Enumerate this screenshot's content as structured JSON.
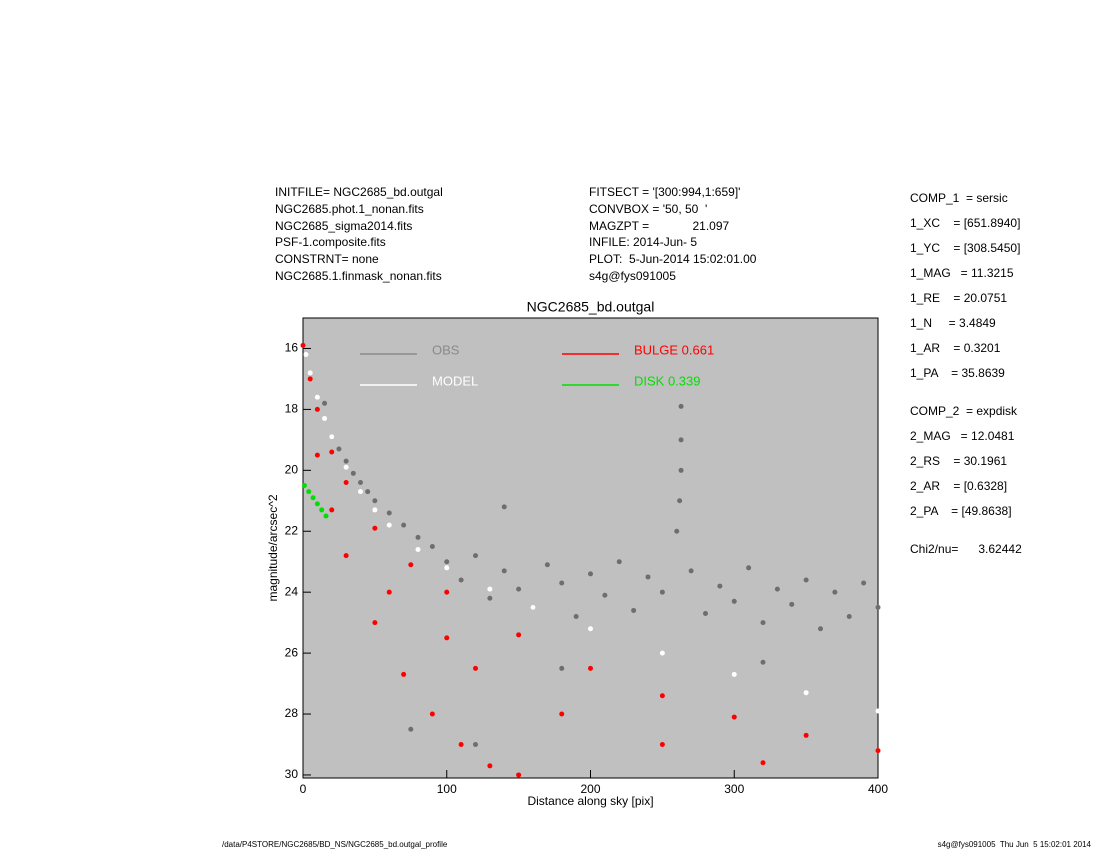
{
  "header": {
    "left": [
      "INITFILE= NGC2685_bd.outgal",
      "NGC2685.phot.1_nonan.fits",
      "NGC2685_sigma2014.fits",
      "PSF-1.composite.fits",
      "CONSTRNT= none",
      "NGC2685.1.finmask_nonan.fits"
    ],
    "middle": [
      "FITSECT = '[300:994,1:659]'",
      "CONVBOX = '50, 50  '",
      "MAGZPT =             21.097",
      "INFILE: 2014-Jun- 5",
      "PLOT:  5-Jun-2014 15:02:01.00",
      "s4g@fys091005"
    ]
  },
  "parameters": [
    [
      "COMP_1  = sersic",
      "1_XC    = [651.8940]",
      "1_YC    = [308.5450]",
      "1_MAG   = 11.3215",
      "1_RE    = 20.0751",
      "1_N     = 3.4849",
      "1_AR    = 0.3201",
      "1_PA    = 35.8639"
    ],
    [
      "COMP_2  = expdisk",
      "2_MAG   = 12.0481",
      "2_RS    = 30.1961",
      "2_AR    = [0.6328]",
      "2_PA    = [49.8638]"
    ],
    [
      "Chi2/nu=      3.62442"
    ]
  ],
  "footer": {
    "left": "/data/P4STORE/NGC2685/BD_NS/NGC2685_bd.outgal_profile",
    "right": "s4g@fys091005  Thu Jun  5 15:02:01 2014"
  },
  "chart_data": {
    "type": "scatter",
    "title": "NGC2685_bd.outgal",
    "x_label": "Distance along sky [pix]",
    "y_label": "magnitude/arcsec^2",
    "xlim": [
      0,
      400
    ],
    "xticks": [
      0,
      100,
      200,
      300,
      400
    ],
    "ylim": [
      30.1,
      15
    ],
    "yticks": [
      16,
      18,
      20,
      22,
      24,
      26,
      28,
      30
    ],
    "plot_background": "#c0c0c0",
    "series": [
      {
        "name": "OBS",
        "color": "#6e6e6e",
        "legend_color": "#8a8a8a",
        "x": [
          15,
          20,
          25,
          30,
          35,
          40,
          45,
          50,
          60,
          70,
          80,
          90,
          100,
          110,
          120,
          130,
          140,
          150,
          160,
          170,
          180,
          190,
          200,
          210,
          220,
          230,
          240,
          250,
          270,
          280,
          290,
          300,
          310,
          320,
          330,
          340,
          350,
          360,
          370,
          380,
          390,
          400,
          263,
          263,
          263,
          262,
          75,
          120,
          180,
          260,
          140,
          320
        ],
        "values": [
          17.8,
          18.9,
          19.3,
          19.7,
          20.1,
          20.4,
          20.7,
          21.0,
          21.4,
          21.8,
          22.2,
          22.5,
          23.0,
          23.6,
          22.8,
          24.2,
          23.3,
          23.9,
          24.5,
          23.1,
          23.7,
          24.8,
          23.4,
          24.1,
          23.0,
          24.6,
          23.5,
          24.0,
          23.3,
          24.7,
          23.8,
          24.3,
          23.2,
          25.0,
          23.9,
          24.4,
          23.6,
          25.2,
          24.0,
          24.8,
          23.7,
          24.5,
          17.9,
          19.0,
          20.0,
          21.0,
          28.5,
          29.0,
          26.5,
          22.0,
          21.2,
          26.3
        ]
      },
      {
        "name": "MODEL",
        "color": "#ffffff",
        "legend_color": "#ffffff",
        "x": [
          2,
          5,
          10,
          15,
          20,
          30,
          40,
          50,
          60,
          80,
          100,
          130,
          160,
          200,
          250,
          300,
          350,
          400
        ],
        "values": [
          16.2,
          16.8,
          17.6,
          18.3,
          18.9,
          19.9,
          20.7,
          21.3,
          21.8,
          22.6,
          23.2,
          23.9,
          24.5,
          25.2,
          26.0,
          26.7,
          27.3,
          27.9
        ]
      },
      {
        "name": "BULGE  0.661",
        "color": "#ff0000",
        "legend_color": "#ff0000",
        "x": [
          0,
          5,
          10,
          20,
          30,
          50,
          75,
          100,
          150,
          200,
          250,
          300,
          350,
          400,
          10,
          20,
          30,
          50,
          70,
          90,
          110,
          130,
          150,
          60,
          120,
          180,
          250,
          320,
          100
        ],
        "values": [
          15.9,
          17.0,
          18.0,
          19.4,
          20.4,
          21.9,
          23.1,
          24.0,
          25.4,
          26.5,
          27.4,
          28.1,
          28.7,
          29.2,
          19.5,
          21.3,
          22.8,
          25.0,
          26.7,
          28.0,
          29.0,
          29.7,
          30.0,
          24.0,
          26.5,
          28.0,
          29.0,
          29.6,
          25.5
        ]
      },
      {
        "name": "DISK  0.339",
        "color": "#00e000",
        "legend_color": "#00e000",
        "x": [
          1,
          4,
          7,
          10,
          13,
          16
        ],
        "values": [
          20.5,
          20.7,
          20.9,
          21.1,
          21.3,
          21.5
        ]
      }
    ]
  }
}
